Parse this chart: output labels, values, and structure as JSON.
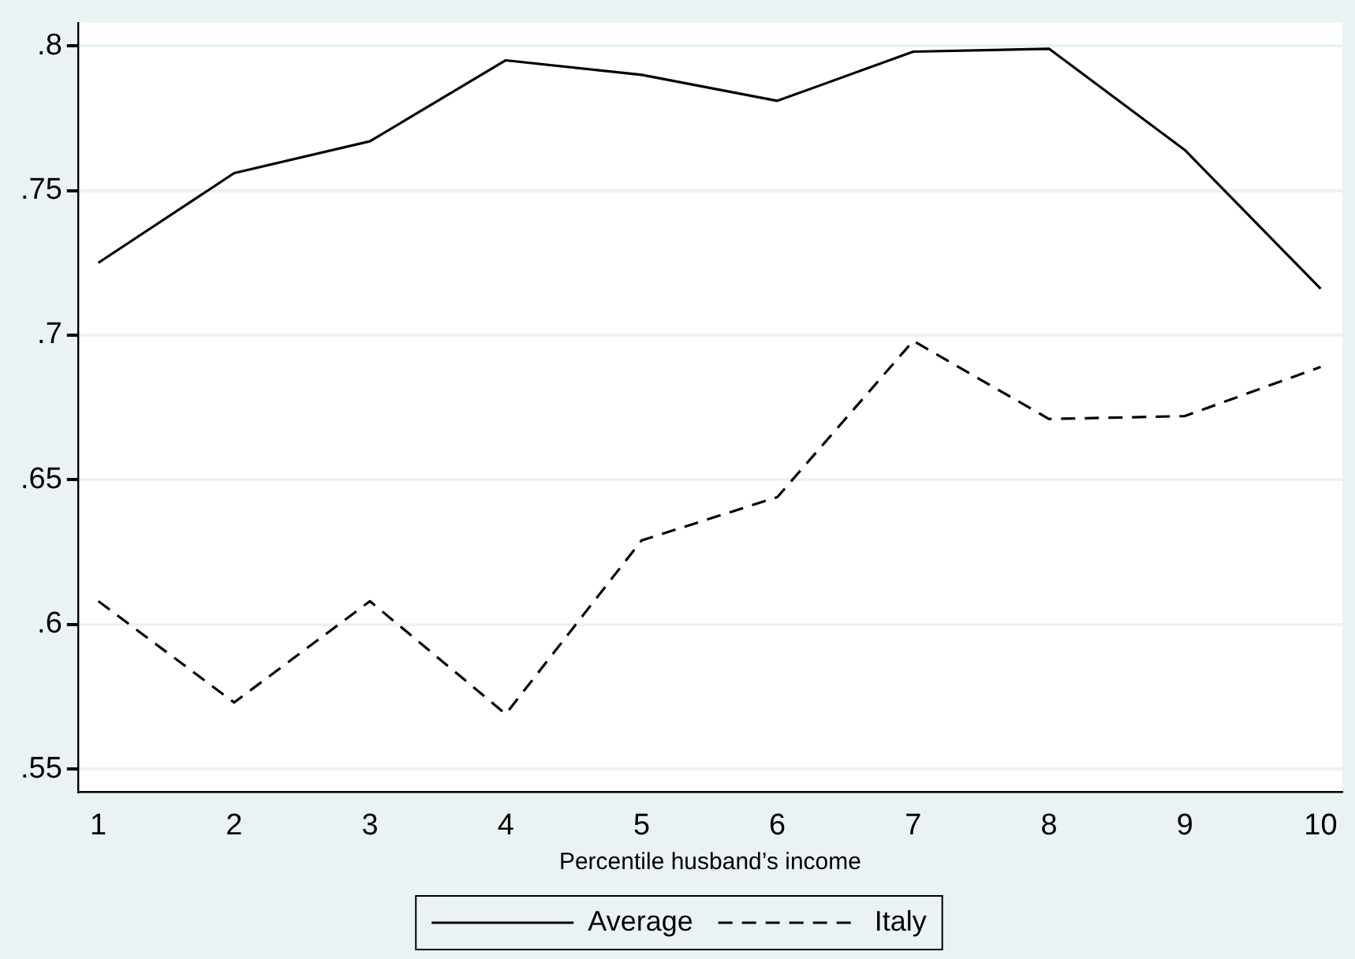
{
  "chart_data": {
    "type": "line",
    "xlabel": "Percentile husband’s income",
    "x": [
      1,
      2,
      3,
      4,
      5,
      6,
      7,
      8,
      9,
      10
    ],
    "series": [
      {
        "name": "Average",
        "color": "#000000",
        "line_style": "solid",
        "values": [
          0.725,
          0.756,
          0.767,
          0.795,
          0.79,
          0.781,
          0.798,
          0.799,
          0.764,
          0.716
        ]
      },
      {
        "name": "Italy",
        "color": "#000000",
        "line_style": "dashed",
        "values": [
          0.608,
          0.573,
          0.608,
          0.569,
          0.629,
          0.644,
          0.698,
          0.671,
          0.672,
          0.689
        ]
      }
    ],
    "xlim": [
      0.85,
      10.16
    ],
    "xticks": [
      1,
      2,
      3,
      4,
      5,
      6,
      7,
      8,
      9,
      10
    ],
    "ylim": [
      0.542,
      0.808
    ],
    "yticks": [
      {
        "value": 0.55,
        "label": ".55"
      },
      {
        "value": 0.6,
        "label": ".6"
      },
      {
        "value": 0.65,
        "label": ".65"
      },
      {
        "value": 0.7,
        "label": ".7"
      },
      {
        "value": 0.75,
        "label": ".75"
      },
      {
        "value": 0.8,
        "label": ".8"
      }
    ],
    "grid": "y",
    "legend": "bottom",
    "marker": "none"
  }
}
